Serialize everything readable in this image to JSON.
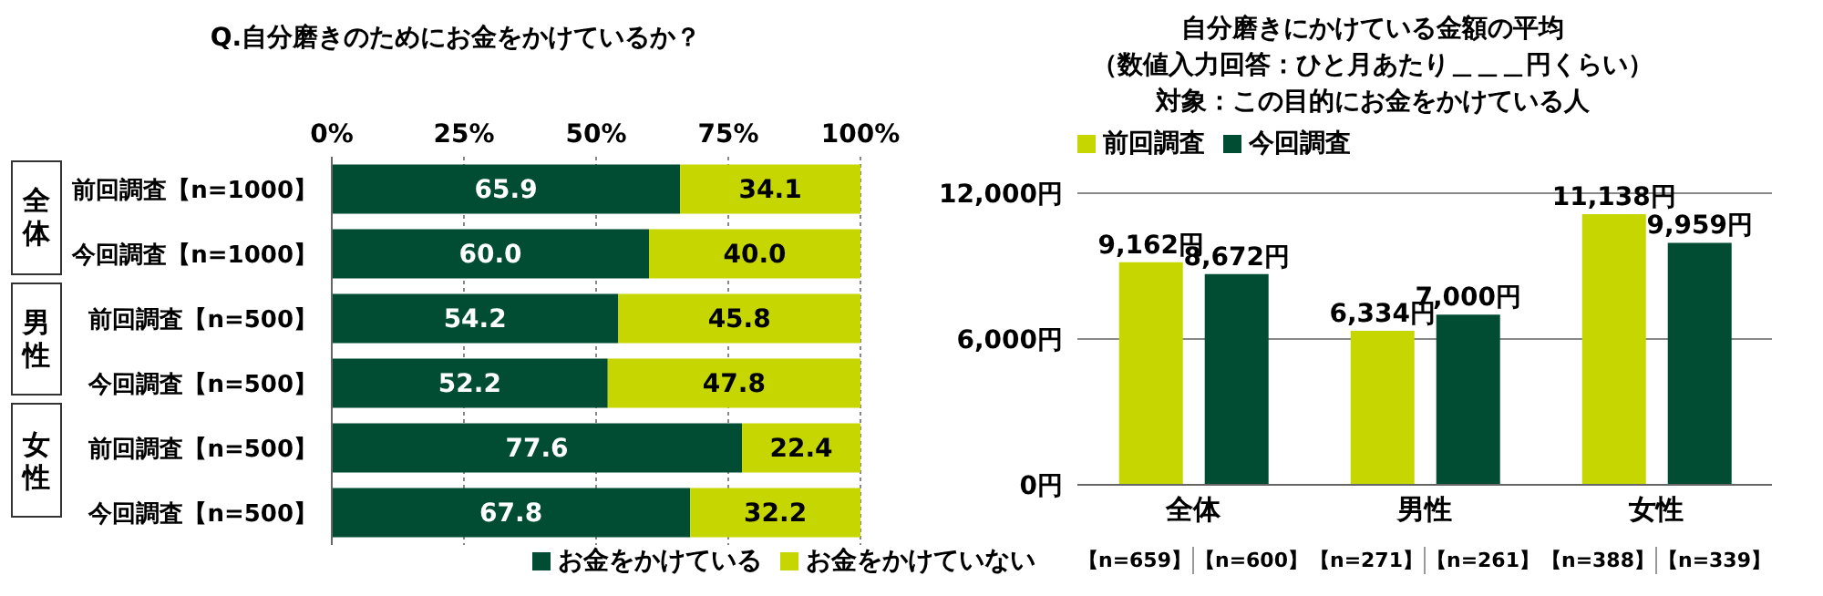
{
  "chart_data": [
    {
      "type": "bar",
      "orientation": "horizontal",
      "stacked": true,
      "title": "Q.自分磨きのためにお金をかけているか？",
      "categories": [
        "前回調査【n=1000】",
        "今回調査【n=1000】",
        "前回調査【n=500】",
        "今回調査【n=500】",
        "前回調査【n=500】",
        "今回調査【n=500】"
      ],
      "series": [
        {
          "name": "お金をかけている",
          "color": "#004d33",
          "values": [
            65.9,
            60.0,
            54.2,
            52.2,
            77.6,
            67.8
          ],
          "value_labels": [
            "65.9",
            "60.0",
            "54.2",
            "52.2",
            "77.6",
            "67.8"
          ]
        },
        {
          "name": "お金をかけていない",
          "color": "#c5d600",
          "values": [
            34.1,
            40.0,
            45.8,
            47.8,
            22.4,
            32.2
          ],
          "value_labels": [
            "34.1",
            "40.0",
            "45.8",
            "47.8",
            "22.4",
            "32.2"
          ]
        }
      ],
      "xlim": [
        0,
        100
      ],
      "xticks": [
        {
          "value": 0,
          "label": "0%"
        },
        {
          "value": 25,
          "label": "25%"
        },
        {
          "value": 50,
          "label": "50%"
        },
        {
          "value": 75,
          "label": "75%"
        },
        {
          "value": 100,
          "label": "100%"
        }
      ],
      "grid": "x",
      "legend": "bottom",
      "annotations": [
        "全体",
        "男性",
        "女性"
      ]
    },
    {
      "type": "bar",
      "title": "自分磨きにかけている金額の平均",
      "subtitle": "（数値入力回答：ひと月あたり＿＿＿円くらい）",
      "categories": [
        "全体",
        "男性",
        "女性"
      ],
      "series": [
        {
          "name": "前回調査",
          "color": "#c5d600",
          "values": [
            9162,
            6334,
            11138
          ],
          "value_labels": [
            "9,162円",
            "6,334円",
            "11,138円"
          ]
        },
        {
          "name": "今回調査",
          "color": "#004d33",
          "values": [
            8672,
            7000,
            9959
          ],
          "value_labels": [
            "8,672円",
            "7,000円",
            "9,959円"
          ]
        }
      ],
      "ylim": [
        0,
        12000
      ],
      "yticks": [
        {
          "value": 0,
          "label": "0円"
        },
        {
          "value": 6000,
          "label": "6,000円"
        },
        {
          "value": 12000,
          "label": "12,000円"
        }
      ],
      "grid": "y",
      "legend": "top left",
      "annotations": [
        "対象：この目的にお金をかけている人",
        "【n=659】",
        "【n=600】",
        "【n=271】",
        "【n=261】",
        "【n=388】",
        "【n=339】"
      ]
    }
  ]
}
